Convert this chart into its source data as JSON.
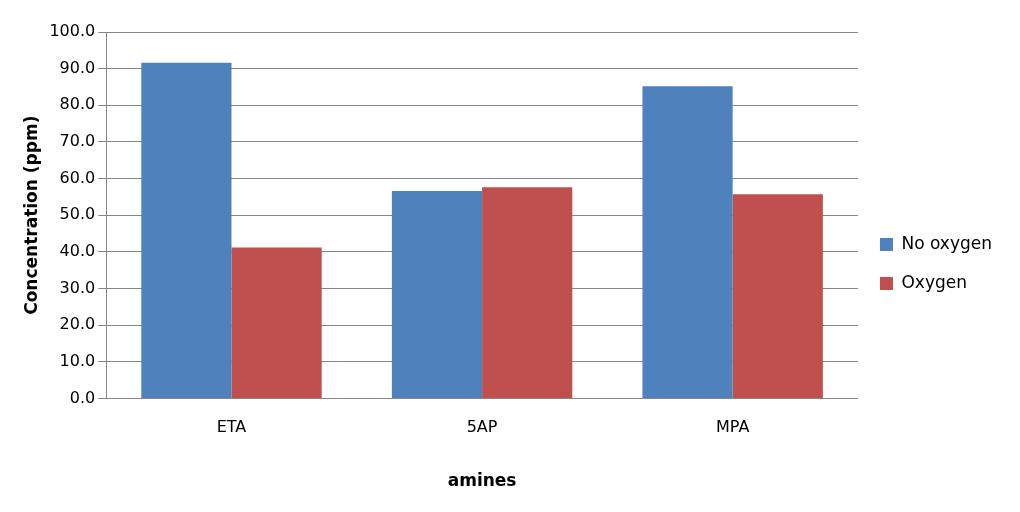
{
  "chart_data": {
    "type": "bar",
    "xlabel": "amines",
    "ylabel": "Concentration (ppm)",
    "categories": [
      "ETA",
      "5AP",
      "MPA"
    ],
    "series": [
      {
        "name": "No oxygen",
        "color": "#4f81bd",
        "values": [
          91.6,
          56.6,
          85.2
        ]
      },
      {
        "name": "Oxygen",
        "color": "#c0504d",
        "values": [
          41.2,
          57.6,
          55.7
        ]
      }
    ],
    "ylim": [
      0,
      100
    ],
    "yticks": [
      {
        "value": 0,
        "label": "0.0"
      },
      {
        "value": 10,
        "label": "10.0"
      },
      {
        "value": 20,
        "label": "20.0"
      },
      {
        "value": 30,
        "label": "30.0"
      },
      {
        "value": 40,
        "label": "40.0"
      },
      {
        "value": 50,
        "label": "50.0"
      },
      {
        "value": 60,
        "label": "60.0"
      },
      {
        "value": 70,
        "label": "70.0"
      },
      {
        "value": 80,
        "label": "80.0"
      },
      {
        "value": 90,
        "label": "90.0"
      },
      {
        "value": 100,
        "label": "100.0"
      }
    ],
    "grid": "y",
    "legend": "right"
  }
}
